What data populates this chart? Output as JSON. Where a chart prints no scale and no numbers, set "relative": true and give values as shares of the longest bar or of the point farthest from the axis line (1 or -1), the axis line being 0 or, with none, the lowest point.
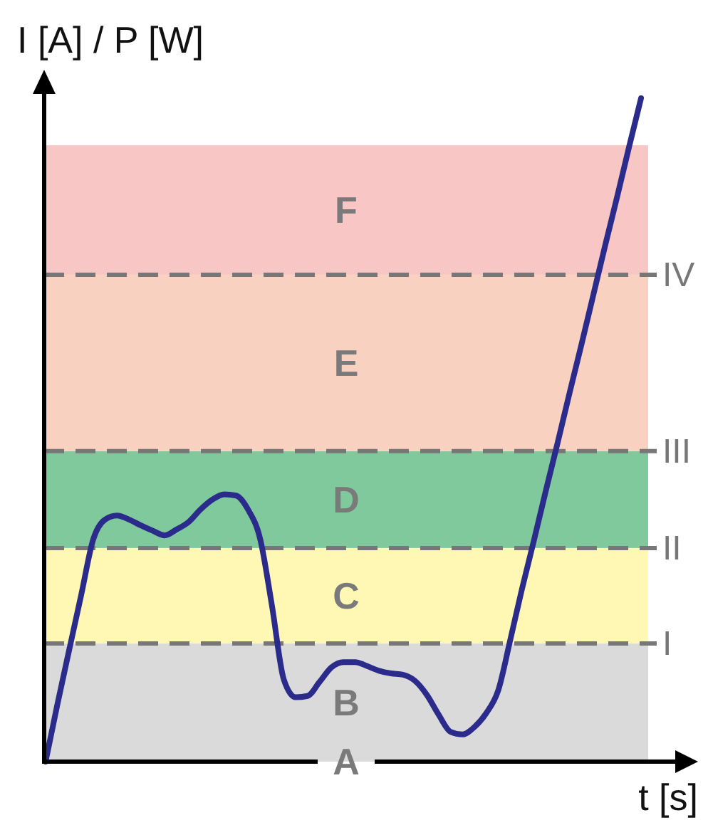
{
  "chart_data": {
    "type": "line",
    "xlabel": "t [s]",
    "ylabel": "I [A] / P [W]",
    "relative": true,
    "categories": [
      null,
      null,
      null,
      null,
      null,
      null,
      null,
      null,
      null,
      null,
      null,
      null,
      null,
      null,
      null,
      null,
      null,
      null,
      null,
      null,
      null,
      null,
      null,
      null,
      null,
      null,
      null,
      null,
      null,
      null,
      null,
      null,
      null,
      null,
      null,
      null,
      null,
      null,
      null,
      null,
      null,
      null,
      null,
      null,
      null,
      null,
      null,
      null,
      null,
      null,
      null
    ],
    "series": [
      {
        "color": "#2b2b8c",
        "values": [
          0,
          0.087,
          0.17,
          0.252,
          0.335,
          0.365,
          0.371,
          0.365,
          0.356,
          0.348,
          0.341,
          0.35,
          0.361,
          0.38,
          0.395,
          0.403,
          0.401,
          0.38,
          0.337,
          0.236,
          0.124,
          0.097,
          0.099,
          0.12,
          0.142,
          0.15,
          0.15,
          0.144,
          0.137,
          0.133,
          0.131,
          0.122,
          0.101,
          0.071,
          0.045,
          0.041,
          0.052,
          0.073,
          0.107,
          0.182,
          0.26,
          0.333,
          0.408,
          0.481,
          0.556,
          0.629,
          0.704,
          0.779,
          0.852,
          0.927,
          1.0
        ]
      }
    ],
    "bands": [
      {
        "axis": "y",
        "from": 0,
        "to": 0.178,
        "label": "B",
        "color": "#dadada"
      },
      {
        "axis": "y",
        "from": 0.178,
        "to": 0.322,
        "label": "C",
        "color": "#fff8b5"
      },
      {
        "axis": "y",
        "from": 0.322,
        "to": 0.468,
        "label": "D",
        "color": "#7fc99c"
      },
      {
        "axis": "y",
        "from": 0.468,
        "to": 0.734,
        "label": "E",
        "color": "#f9d1c0"
      },
      {
        "axis": "y",
        "from": 0.734,
        "to": 0.929,
        "label": "F",
        "color": "#f7c6c5"
      }
    ],
    "ref_lines": [
      {
        "axis": "y",
        "value": 0.178,
        "label": "I",
        "color": "#777777",
        "line_style": "dashed"
      },
      {
        "axis": "y",
        "value": 0.322,
        "label": "II",
        "color": "#777777",
        "line_style": "dashed"
      },
      {
        "axis": "y",
        "value": 0.468,
        "label": "III",
        "color": "#777777",
        "line_style": "dashed"
      },
      {
        "axis": "y",
        "value": 0.734,
        "label": "IV",
        "color": "#777777",
        "line_style": "dashed"
      }
    ],
    "annotations": [
      {
        "text": "A",
        "y": 0
      }
    ]
  }
}
